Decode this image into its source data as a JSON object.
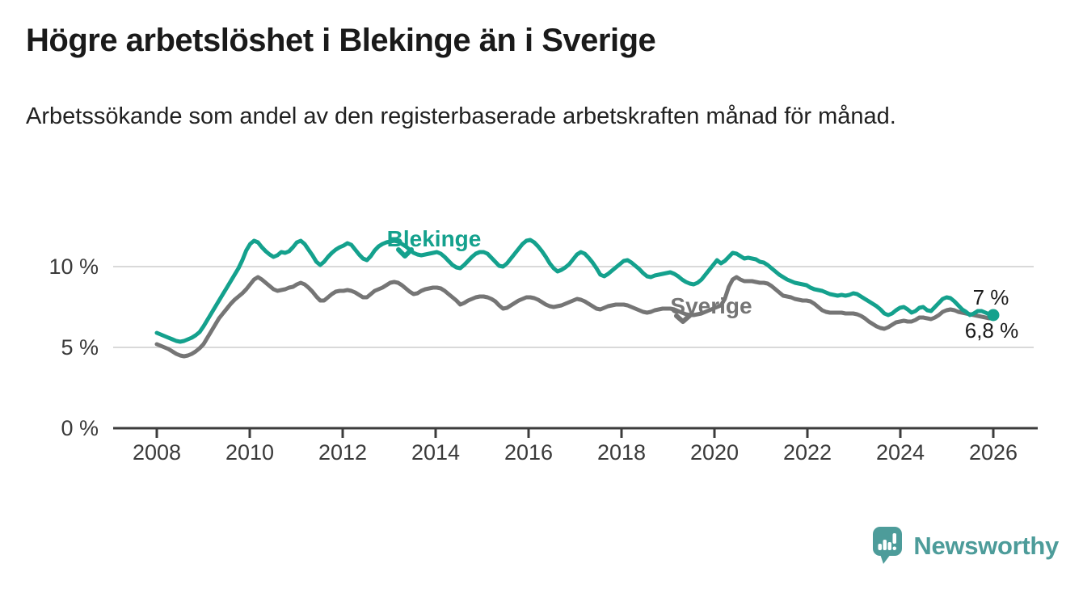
{
  "header": {
    "title": "Högre arbetslöshet i Blekinge än i Sverige",
    "subtitle": "Arbetssökande som andel av den registerbaserade arbetskraften månad för månad."
  },
  "chart_data": {
    "type": "line",
    "title": "Högre arbetslöshet i Blekinge än i Sverige",
    "subtitle": "Arbetssökande som andel av den registerbaserade arbetskraften månad för månad.",
    "x_unit": "month",
    "x_start_year": 2008,
    "x_end_year": 2026,
    "ylim": [
      0,
      13.5
    ],
    "grid": "horizontal-only",
    "legend_position": "inline-labels",
    "y_ticks": [
      {
        "value": 0,
        "label": "0 %"
      },
      {
        "value": 5,
        "label": "5 %"
      },
      {
        "value": 10,
        "label": "10 %"
      }
    ],
    "x_ticks": [
      {
        "value": 2008,
        "label": "2008"
      },
      {
        "value": 2010,
        "label": "2010"
      },
      {
        "value": 2012,
        "label": "2012"
      },
      {
        "value": 2014,
        "label": "2014"
      },
      {
        "value": 2016,
        "label": "2016"
      },
      {
        "value": 2018,
        "label": "2018"
      },
      {
        "value": 2020,
        "label": "2020"
      },
      {
        "value": 2022,
        "label": "2022"
      },
      {
        "value": 2024,
        "label": "2024"
      },
      {
        "value": 2026,
        "label": "2026"
      }
    ],
    "series": [
      {
        "name": "Sverige",
        "color": "#757575",
        "values": [
          5.2,
          5.1,
          5.0,
          4.9,
          4.75,
          4.6,
          4.5,
          4.45,
          4.5,
          4.6,
          4.75,
          4.95,
          5.2,
          5.6,
          6.0,
          6.4,
          6.8,
          7.1,
          7.4,
          7.7,
          7.95,
          8.15,
          8.35,
          8.6,
          8.9,
          9.2,
          9.35,
          9.2,
          9.0,
          8.8,
          8.6,
          8.5,
          8.55,
          8.6,
          8.7,
          8.75,
          8.9,
          9.0,
          8.9,
          8.7,
          8.45,
          8.15,
          7.9,
          7.9,
          8.1,
          8.3,
          8.45,
          8.5,
          8.5,
          8.55,
          8.5,
          8.4,
          8.25,
          8.1,
          8.1,
          8.3,
          8.5,
          8.6,
          8.7,
          8.85,
          9.0,
          9.05,
          9.0,
          8.85,
          8.65,
          8.45,
          8.3,
          8.35,
          8.5,
          8.6,
          8.65,
          8.7,
          8.7,
          8.65,
          8.5,
          8.3,
          8.1,
          7.9,
          7.65,
          7.75,
          7.9,
          8.0,
          8.1,
          8.15,
          8.15,
          8.1,
          8.0,
          7.85,
          7.6,
          7.4,
          7.45,
          7.6,
          7.75,
          7.9,
          8.0,
          8.1,
          8.1,
          8.05,
          7.95,
          7.8,
          7.65,
          7.55,
          7.5,
          7.55,
          7.6,
          7.7,
          7.8,
          7.9,
          8.0,
          7.95,
          7.85,
          7.7,
          7.55,
          7.4,
          7.35,
          7.45,
          7.55,
          7.6,
          7.65,
          7.65,
          7.65,
          7.6,
          7.5,
          7.4,
          7.3,
          7.2,
          7.15,
          7.2,
          7.3,
          7.35,
          7.4,
          7.4,
          7.4,
          7.35,
          7.25,
          7.15,
          7.05,
          7.0,
          7.0,
          7.05,
          7.1,
          7.2,
          7.3,
          7.4,
          7.5,
          7.6,
          8.0,
          8.75,
          9.2,
          9.35,
          9.2,
          9.1,
          9.1,
          9.1,
          9.05,
          9.0,
          9.0,
          8.95,
          8.8,
          8.6,
          8.4,
          8.2,
          8.15,
          8.1,
          8.0,
          7.95,
          7.9,
          7.9,
          7.85,
          7.7,
          7.5,
          7.3,
          7.2,
          7.15,
          7.15,
          7.15,
          7.15,
          7.1,
          7.1,
          7.1,
          7.05,
          6.95,
          6.8,
          6.6,
          6.45,
          6.3,
          6.2,
          6.15,
          6.25,
          6.4,
          6.55,
          6.6,
          6.65,
          6.6,
          6.6,
          6.7,
          6.85,
          6.85,
          6.8,
          6.75,
          6.85,
          7.0,
          7.2,
          7.3,
          7.35,
          7.3,
          7.2,
          7.15,
          7.1,
          7.05,
          7.0,
          6.95,
          6.9,
          6.85,
          6.8,
          6.8
        ]
      },
      {
        "name": "Blekinge",
        "color": "#14a18d",
        "values": [
          5.9,
          5.8,
          5.7,
          5.6,
          5.5,
          5.4,
          5.35,
          5.4,
          5.5,
          5.6,
          5.75,
          5.95,
          6.3,
          6.7,
          7.1,
          7.5,
          7.9,
          8.3,
          8.7,
          9.1,
          9.5,
          9.9,
          10.4,
          11.0,
          11.4,
          11.6,
          11.5,
          11.2,
          10.95,
          10.75,
          10.6,
          10.7,
          10.9,
          10.85,
          10.95,
          11.2,
          11.5,
          11.6,
          11.4,
          11.05,
          10.7,
          10.3,
          10.1,
          10.3,
          10.6,
          10.85,
          11.05,
          11.2,
          11.3,
          11.45,
          11.35,
          11.05,
          10.75,
          10.5,
          10.4,
          10.65,
          11.0,
          11.25,
          11.4,
          11.5,
          11.55,
          11.6,
          11.55,
          11.4,
          11.25,
          11.05,
          10.85,
          10.75,
          10.7,
          10.75,
          10.8,
          10.85,
          10.9,
          10.8,
          10.6,
          10.35,
          10.1,
          9.95,
          9.9,
          10.1,
          10.35,
          10.6,
          10.8,
          10.9,
          10.9,
          10.8,
          10.55,
          10.3,
          10.05,
          10.0,
          10.2,
          10.5,
          10.8,
          11.1,
          11.4,
          11.6,
          11.65,
          11.5,
          11.25,
          10.95,
          10.6,
          10.2,
          9.9,
          9.7,
          9.8,
          9.95,
          10.15,
          10.45,
          10.75,
          10.9,
          10.8,
          10.55,
          10.25,
          9.9,
          9.5,
          9.4,
          9.55,
          9.75,
          9.95,
          10.15,
          10.35,
          10.4,
          10.25,
          10.05,
          9.85,
          9.6,
          9.4,
          9.35,
          9.45,
          9.5,
          9.55,
          9.6,
          9.65,
          9.55,
          9.4,
          9.2,
          9.05,
          8.95,
          8.9,
          9.0,
          9.2,
          9.5,
          9.8,
          10.1,
          10.4,
          10.2,
          10.35,
          10.6,
          10.85,
          10.8,
          10.65,
          10.5,
          10.55,
          10.5,
          10.45,
          10.3,
          10.25,
          10.1,
          9.9,
          9.7,
          9.5,
          9.35,
          9.2,
          9.1,
          9.0,
          8.95,
          8.9,
          8.85,
          8.7,
          8.6,
          8.55,
          8.5,
          8.4,
          8.3,
          8.25,
          8.2,
          8.25,
          8.2,
          8.25,
          8.35,
          8.3,
          8.15,
          8.0,
          7.85,
          7.7,
          7.55,
          7.35,
          7.1,
          7.0,
          7.1,
          7.3,
          7.45,
          7.5,
          7.35,
          7.15,
          7.25,
          7.45,
          7.5,
          7.3,
          7.25,
          7.5,
          7.75,
          8.0,
          8.1,
          8.05,
          7.85,
          7.6,
          7.35,
          7.2,
          7.0,
          7.1,
          7.25,
          7.25,
          7.15,
          7.05,
          7.0
        ]
      }
    ],
    "annotations": {
      "blekinge_end_label": "7 %",
      "sverige_end_label": "6,8 %"
    },
    "colors": {
      "blekinge": "#14a18d",
      "sverige": "#757575",
      "gridline": "#d9d9d9",
      "axis": "#3c3c3c"
    }
  },
  "footer": {
    "brand": "Newsworthy"
  }
}
